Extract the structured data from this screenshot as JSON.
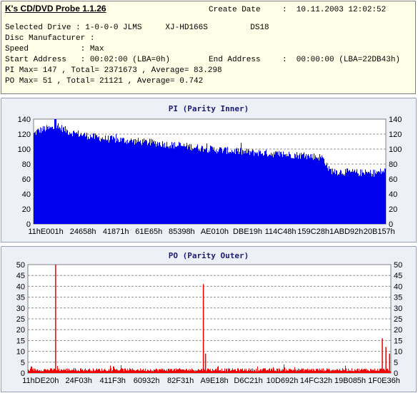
{
  "header": {
    "app_title": "K's CD/DVD Probe 1.1.26",
    "create_date_label": "Create Date",
    "create_date_value": ":  10.11.2003 12:02:52",
    "selected_drive": "Selected Drive : 1-0-0-0 JLMS     XJ-HD166S         DS18",
    "disc_manufacturer": "Disc Manufacturer :",
    "speed": "Speed           : Max",
    "start_address": "Start Address   : 00:02:00 (LBA=0h)",
    "end_address_label": "End Address",
    "end_address_value": ":  00:00:00 (LBA=22DB43h)",
    "pi_summary": "PI Max= 147 , Total= 2371673 , Average= 83.298",
    "po_summary": "PO Max= 51 , Total= 21121 , Average= 0.742"
  },
  "colors": {
    "pi_fill": "#0000ee",
    "po_fill": "#ee0000",
    "panel_bg": "#eef0f8",
    "plot_bg": "#ffffff",
    "info_bg": "#ffffe7"
  },
  "chart_data": [
    {
      "type": "area",
      "title": "PI (Parity Inner)",
      "xlabel": "",
      "ylabel": "",
      "ylim": [
        0,
        140
      ],
      "y_ticks": [
        0,
        20,
        40,
        60,
        80,
        100,
        120,
        140
      ],
      "x_tick_labels": [
        "11hE001h",
        "24658h",
        "41871h",
        "61E65h",
        "85398h",
        "AE010h",
        "DBE19h",
        "114C48h",
        "159C28h",
        "1ABD92h",
        "20B157h"
      ],
      "grid": true,
      "series": [
        {
          "x_fraction": [
            0,
            0.01,
            0.03,
            0.06,
            0.08,
            0.1,
            0.12,
            0.15,
            0.2,
            0.25,
            0.3,
            0.35,
            0.4,
            0.45,
            0.5,
            0.55,
            0.6,
            0.65,
            0.7,
            0.75,
            0.8,
            0.82,
            0.83,
            0.84,
            0.86,
            0.9,
            0.94,
            0.97,
            0.99,
            1
          ],
          "values": [
            120,
            124,
            127,
            128,
            128,
            123,
            121,
            118,
            114,
            112,
            110,
            108,
            105,
            103,
            100,
            98,
            96,
            95,
            93,
            92,
            90,
            89,
            82,
            72,
            70,
            69,
            68,
            68,
            70,
            71
          ],
          "max": 147
        }
      ]
    },
    {
      "type": "area",
      "title": "PO (Parity Outer)",
      "xlabel": "",
      "ylabel": "",
      "ylim": [
        0,
        50
      ],
      "y_ticks": [
        0,
        5,
        10,
        15,
        20,
        25,
        30,
        35,
        40,
        45,
        50
      ],
      "x_tick_labels": [
        "11hDE20h",
        "24F03h",
        "411F3h",
        "60932h",
        "82F31h",
        "A9E18h",
        "D6C21h",
        "10D692h",
        "14FC32h",
        "19B085h",
        "1F0E36h"
      ],
      "grid": true,
      "series": [
        {
          "baseline": 1.5,
          "spikes": [
            {
              "x_fraction": 0.075,
              "value": 51
            },
            {
              "x_fraction": 0.482,
              "value": 41
            },
            {
              "x_fraction": 0.488,
              "value": 9
            },
            {
              "x_fraction": 0.975,
              "value": 16
            },
            {
              "x_fraction": 0.985,
              "value": 12
            },
            {
              "x_fraction": 0.995,
              "value": 9
            }
          ],
          "max": 51
        }
      ]
    }
  ]
}
